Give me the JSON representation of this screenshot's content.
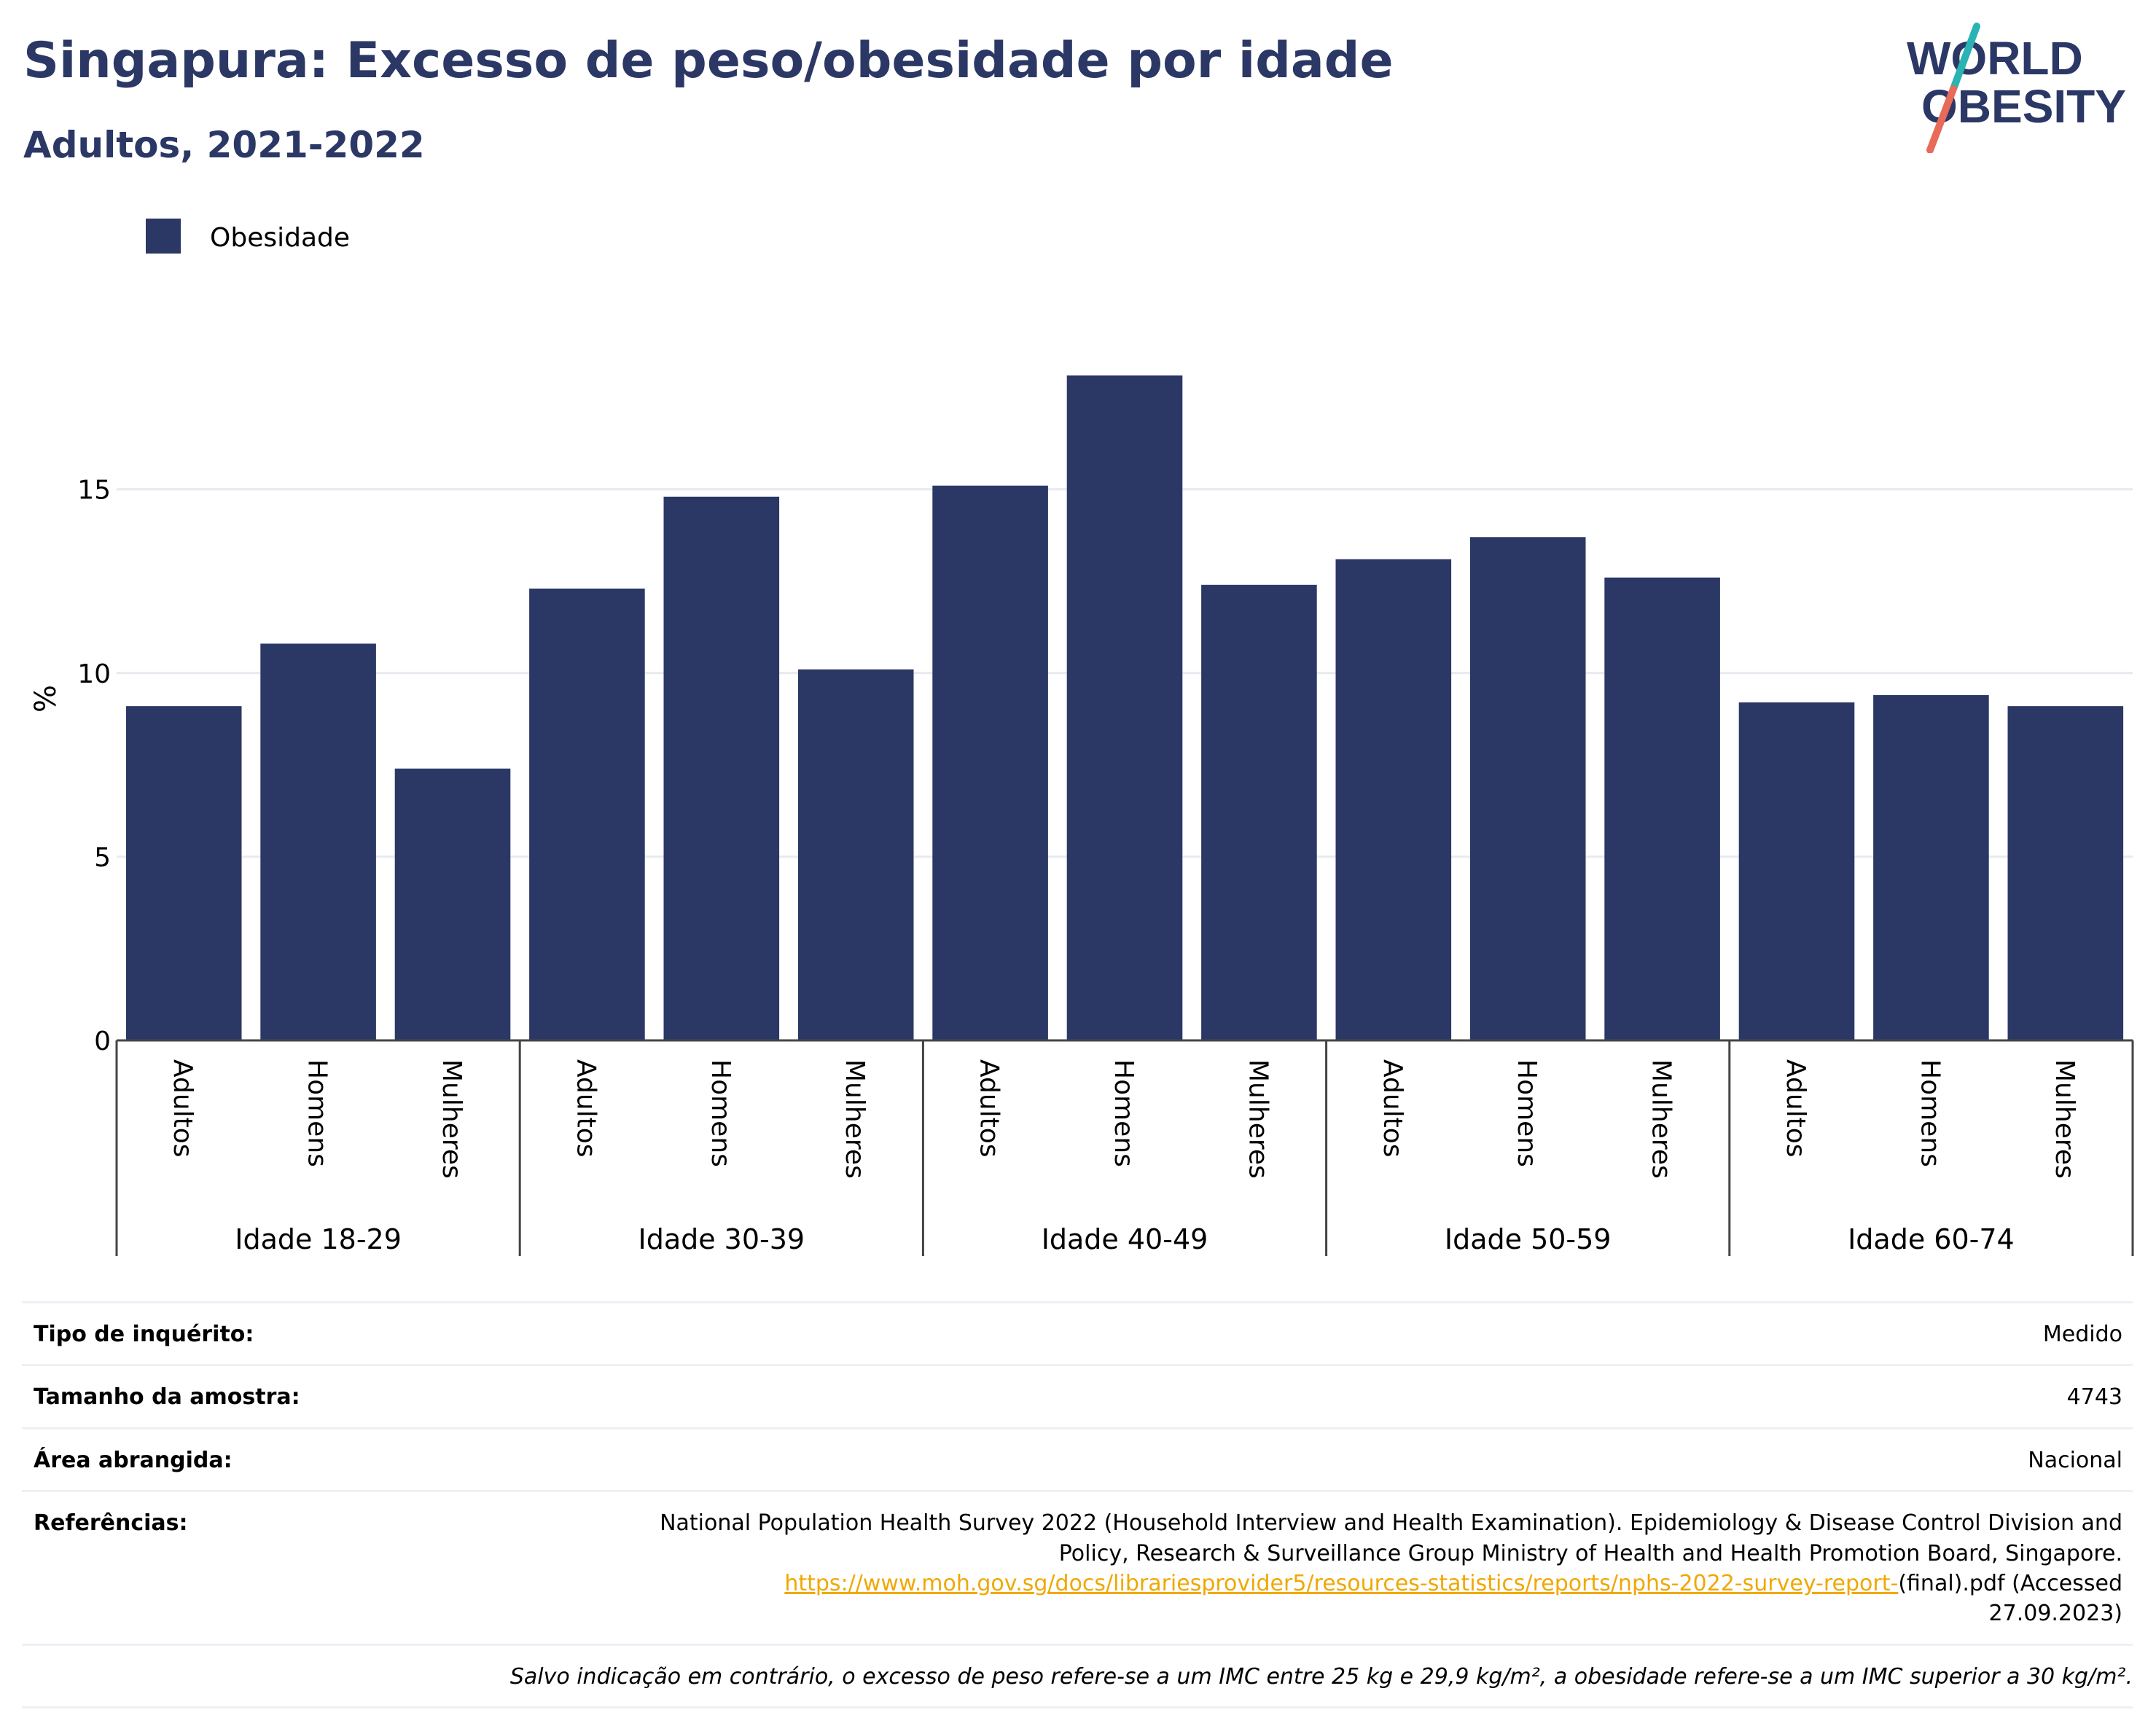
{
  "title": "Singapura: Excesso de peso/obesidade por idade",
  "subtitle": "Adultos, 2021-2022",
  "logo": {
    "line1": "WORLD",
    "line2": "OBESITY",
    "colors": {
      "text": "#2b3865",
      "slash_top": "#2ab3b3",
      "slash_bottom": "#e86a58"
    }
  },
  "chart_data": {
    "type": "bar",
    "ylabel": "%",
    "ylim": [
      0,
      19
    ],
    "yticks": [
      0,
      5,
      10,
      15
    ],
    "grid": true,
    "legend": {
      "position": "top-left",
      "entries": [
        {
          "name": "Obesidade",
          "color": "#2b3865"
        }
      ]
    },
    "groups": [
      {
        "label": "Idade 18-29",
        "categories": [
          "Adultos",
          "Homens",
          "Mulheres"
        ],
        "values": [
          9.1,
          10.8,
          7.4
        ]
      },
      {
        "label": "Idade 30-39",
        "categories": [
          "Adultos",
          "Homens",
          "Mulheres"
        ],
        "values": [
          12.3,
          14.8,
          10.1
        ]
      },
      {
        "label": "Idade 40-49",
        "categories": [
          "Adultos",
          "Homens",
          "Mulheres"
        ],
        "values": [
          15.1,
          18.1,
          12.4
        ]
      },
      {
        "label": "Idade 50-59",
        "categories": [
          "Adultos",
          "Homens",
          "Mulheres"
        ],
        "values": [
          13.1,
          13.7,
          12.6
        ]
      },
      {
        "label": "Idade 60-74",
        "categories": [
          "Adultos",
          "Homens",
          "Mulheres"
        ],
        "values": [
          9.2,
          9.4,
          9.1
        ]
      }
    ],
    "series": [
      {
        "name": "Obesidade",
        "color": "#2b3865"
      }
    ]
  },
  "info": {
    "survey_type": {
      "label": "Tipo de inquérito:",
      "value": "Medido"
    },
    "sample_size": {
      "label": "Tamanho da amostra:",
      "value": "4743"
    },
    "area": {
      "label": "Área abrangida:",
      "value": "Nacional"
    },
    "references": {
      "label": "Referências:",
      "line1": "National Population Health Survey 2022 (Household Interview and Health Examination). Epidemiology & Disease Control Division and",
      "line2": "Policy, Research & Surveillance Group Ministry of Health and Health Promotion Board, Singapore.",
      "link": "https://www.moh.gov.sg/docs/librariesprovider5/resources-statistics/reports/nphs-2022-survey-report-",
      "link_suffix": "(final).pdf (Accessed",
      "line4": "27.09.2023)"
    },
    "note": "Salvo indicação em contrário, o excesso de peso refere-se a um IMC entre 25 kg e 29,9 kg/m², a obesidade refere-se a um IMC superior a 30 kg/m²."
  }
}
